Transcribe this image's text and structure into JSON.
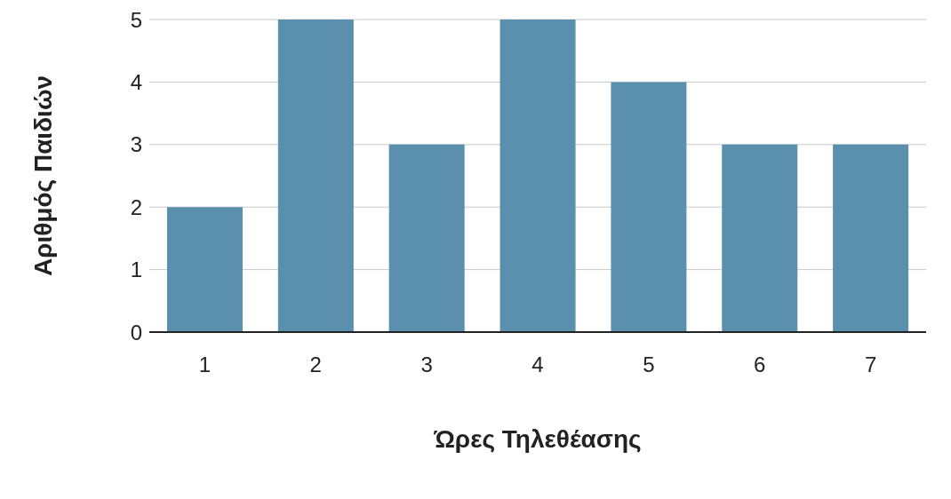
{
  "chart_data": {
    "type": "bar",
    "xlabel": "Ώρες Τηλεθέασης",
    "ylabel": "Αριθμός Παιδιών",
    "categories": [
      "1",
      "2",
      "3",
      "4",
      "5",
      "6",
      "7"
    ],
    "values": [
      2,
      5,
      3,
      5,
      4,
      3,
      3
    ],
    "color": "#5a8fae",
    "ylim": [
      0,
      5
    ],
    "yticks": [
      0,
      1,
      2,
      3,
      4,
      5
    ],
    "grid": "y"
  }
}
